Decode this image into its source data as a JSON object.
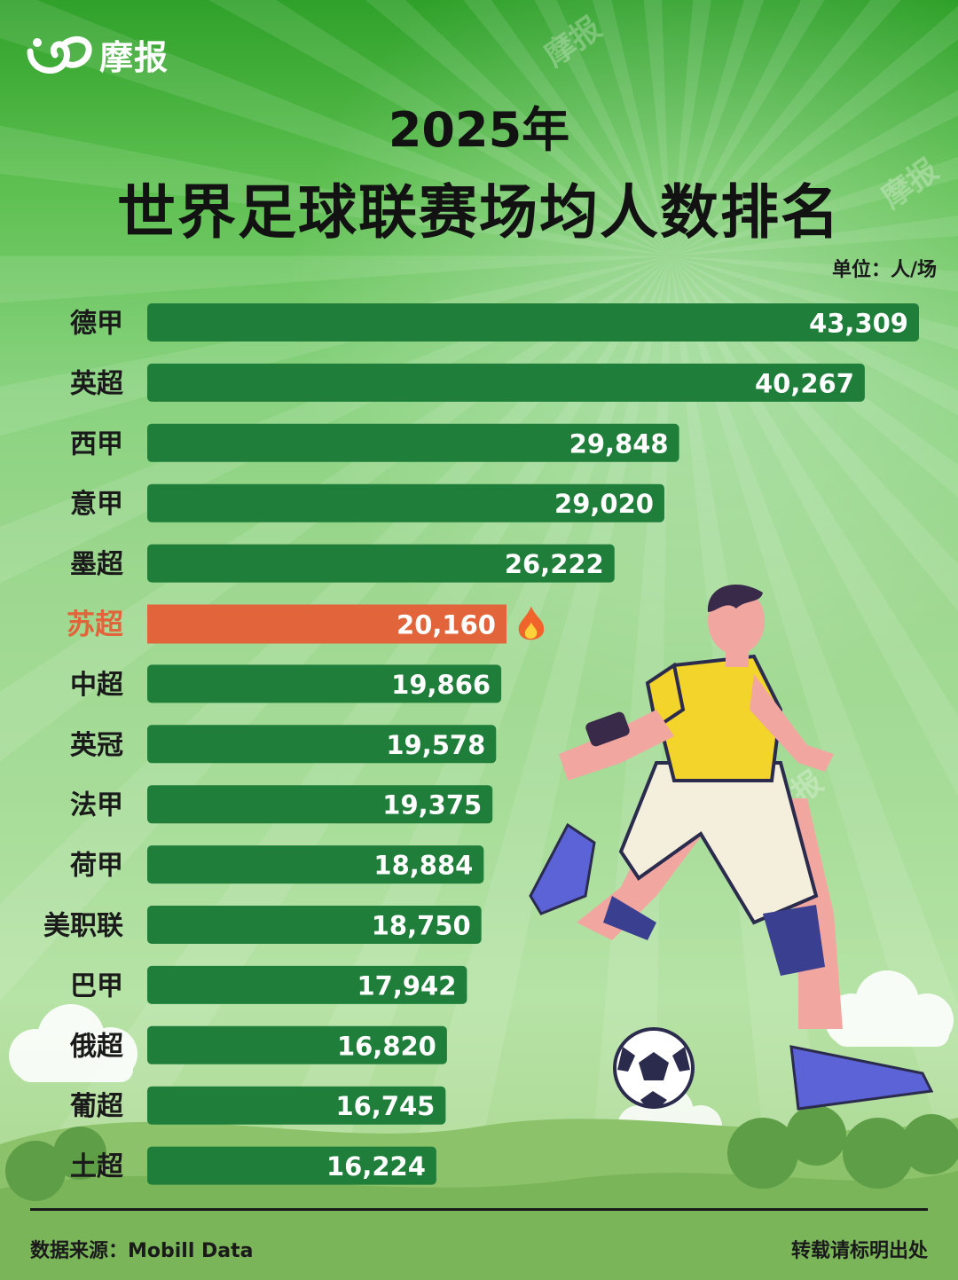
{
  "brand": {
    "name": "摩报"
  },
  "header": {
    "year": "2025年",
    "title": "世界足球联赛场均人数排名",
    "unit": "单位：人/场"
  },
  "footer": {
    "source": "数据来源：Mobill Data",
    "repost": "转载请标明出处"
  },
  "colors": {
    "bar": "#1e7e3a",
    "highlight": "#e2643a",
    "label": "#1a1a1a",
    "highlight_label": "#e2643a"
  },
  "chart_data": {
    "type": "bar",
    "orientation": "horizontal",
    "categories": [
      "德甲",
      "英超",
      "西甲",
      "意甲",
      "墨超",
      "苏超",
      "中超",
      "英冠",
      "法甲",
      "荷甲",
      "美职联",
      "巴甲",
      "俄超",
      "葡超",
      "土超"
    ],
    "values": [
      43309,
      40267,
      29848,
      29020,
      26222,
      20160,
      19866,
      19578,
      19375,
      18884,
      18750,
      17942,
      16820,
      16745,
      16224
    ],
    "value_labels": [
      "43,309",
      "40,267",
      "29,848",
      "29,020",
      "26,222",
      "20,160",
      "19,866",
      "19,578",
      "19,375",
      "18,884",
      "18,750",
      "17,942",
      "16,820",
      "16,745",
      "16,224"
    ],
    "highlight": "苏超",
    "highlight_icon": "fire-icon",
    "unit": "人/场",
    "grid": false,
    "legend": "none"
  }
}
